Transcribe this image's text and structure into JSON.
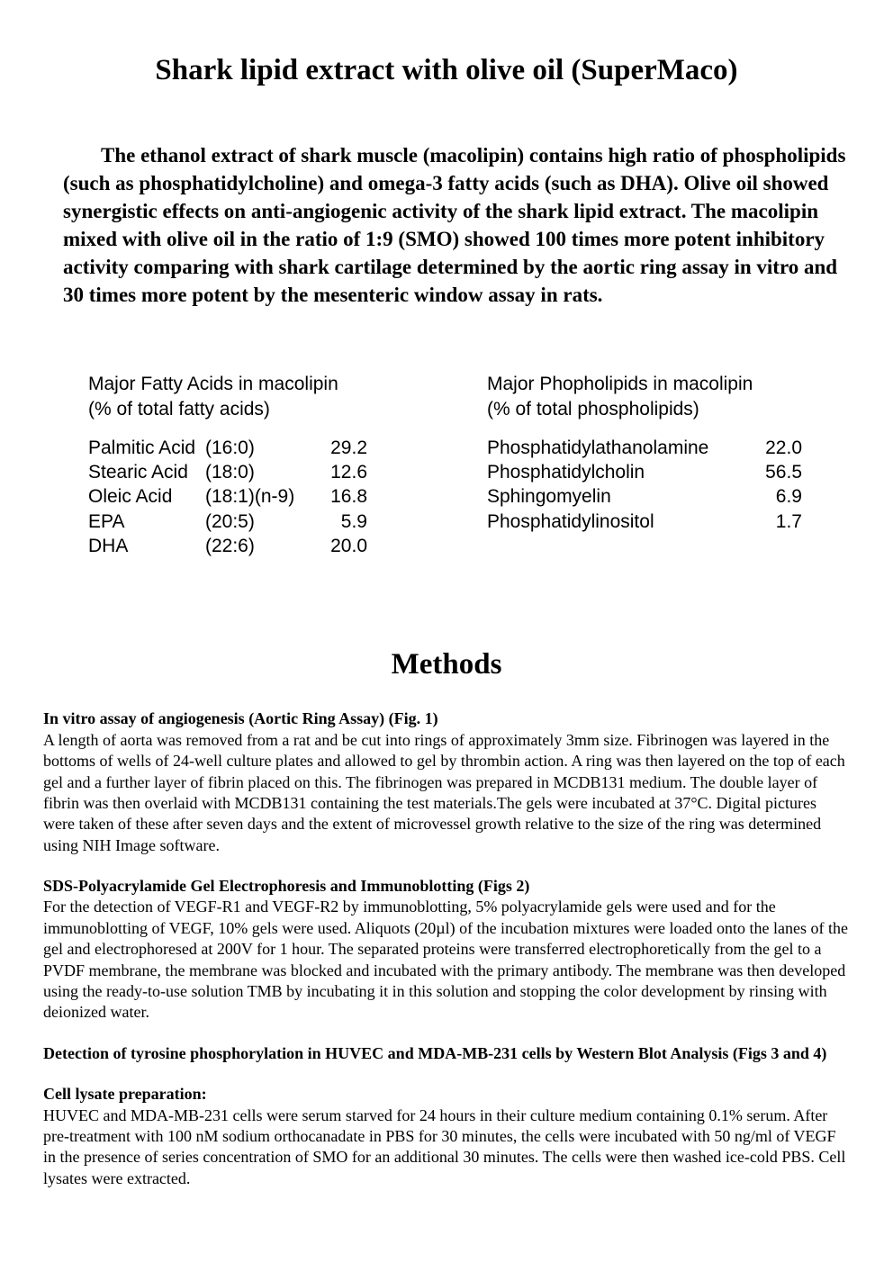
{
  "title": "Shark lipid extract with olive oil (SuperMaco)",
  "intro": "The ethanol extract of shark muscle (macolipin) contains high ratio of phospholipids (such as phosphatidylcholine) and omega-3 fatty acids (such as DHA). Olive oil showed synergistic effects on anti-angiogenic activity of the shark lipid extract. The macolipin mixed with olive oil in the ratio of 1:9 (SMO) showed 100 times more potent inhibitory activity comparing with shark cartilage determined by the aortic ring assay in vitro and 30 times more potent by the mesenteric window assay in rats.",
  "fattyAcidsTable": {
    "heading_line1": "Major Fatty Acids in macolipin",
    "heading_line2": "(% of total fatty acids)",
    "rows": [
      {
        "name": "Palmitic Acid",
        "notation": "(16:0)",
        "value": "29.2"
      },
      {
        "name": "Stearic Acid",
        "notation": "(18:0)",
        "value": "12.6"
      },
      {
        "name": "Oleic Acid",
        "notation": "(18:1)(n-9)",
        "value": "16.8"
      },
      {
        "name": "EPA",
        "notation": "(20:5)",
        "value": "5.9"
      },
      {
        "name": "DHA",
        "notation": "(22:6)",
        "value": "20.0"
      }
    ]
  },
  "phospholipidsTable": {
    "heading_line1": "Major Phopholipids in macolipin",
    "heading_line2": "(% of total phospholipids)",
    "rows": [
      {
        "name": "Phosphatidylathanolamine",
        "value": "22.0"
      },
      {
        "name": "Phosphatidylcholin",
        "value": "56.5"
      },
      {
        "name": "Sphingomyelin",
        "value": "6.9"
      },
      {
        "name": "Phosphatidylinositol",
        "value": "1.7"
      }
    ]
  },
  "methodsTitle": "Methods",
  "methods": {
    "section1": {
      "heading": "In vitro assay of angiogenesis (Aortic Ring Assay) (Fig. 1)",
      "body": "A length of aorta was removed from a rat and be cut into rings of approximately 3mm size. Fibrinogen was layered in the bottoms of wells of 24-well culture plates and allowed to gel by thrombin action. A ring was then layered on the top of each gel and a further layer of fibrin placed on this. The fibrinogen was prepared in MCDB131 medium. The double layer of fibrin was then overlaid with MCDB131 containing the test materials.The gels were incubated at 37°C. Digital pictures were taken of these after seven days and the extent of microvessel growth relative to the size of the ring was determined using NIH Image software."
    },
    "section2": {
      "heading": "SDS-Polyacrylamide Gel Electrophoresis and Immunoblotting (Figs 2)",
      "body": "For the detection of VEGF-R1 and VEGF-R2 by immunoblotting, 5% polyacrylamide gels were used and for the immunoblotting of VEGF, 10% gels were used. Aliquots (20µl) of the incubation mixtures were loaded onto the lanes of the gel and electrophoresed at 200V for 1 hour. The separated proteins were transferred electrophoretically from the gel to a PVDF membrane, the membrane was blocked and incubated with the primary antibody. The membrane was then developed using the ready-to-use solution TMB by incubating it in this solution and stopping the color development by rinsing with deionized water."
    },
    "section3": {
      "heading": "Detection of tyrosine phosphorylation in HUVEC and MDA-MB-231 cells by Western Blot Analysis (Figs 3 and 4)",
      "subheading": "Cell lysate preparation:",
      "body": "HUVEC and MDA-MB-231 cells were serum starved for 24 hours in their culture medium containing 0.1% serum. After pre-treatment with 100 nM sodium orthocanadate in PBS for 30 minutes, the cells were incubated with 50 ng/ml of VEGF in the presence of series concentration of SMO for an additional 30 minutes. The cells were then washed ice-cold PBS. Cell lysates were extracted."
    }
  }
}
